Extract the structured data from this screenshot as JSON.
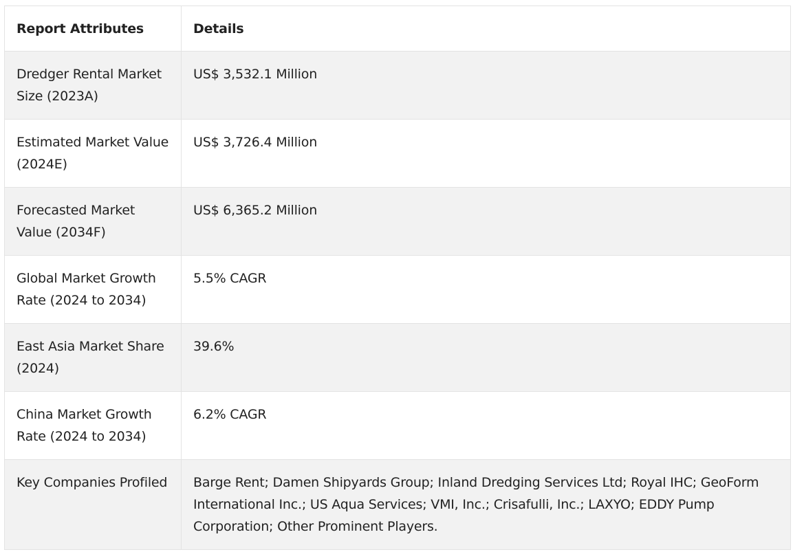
{
  "table": {
    "headers": [
      "Report Attributes",
      "Details"
    ],
    "rows": [
      {
        "attribute": "Dredger Rental Market Size (2023A)",
        "details": "US$ 3,532.1 Million"
      },
      {
        "attribute": "Estimated Market Value (2024E)",
        "details": "US$ 3,726.4 Million"
      },
      {
        "attribute": "Forecasted Market Value (2034F)",
        "details": "US$ 6,365.2 Million"
      },
      {
        "attribute": "Global Market Growth Rate (2024 to 2034)",
        "details": "5.5% CAGR"
      },
      {
        "attribute": "East Asia Market Share (2024)",
        "details": "39.6%"
      },
      {
        "attribute": "China Market Growth Rate (2024 to 2034)",
        "details": "6.2% CAGR"
      },
      {
        "attribute": "Key Companies Profiled",
        "details": "Barge Rent; Damen Shipyards Group; Inland Dredging Services Ltd; Royal IHC; GeoForm International Inc.; US Aqua Services; VMI, Inc.; Crisafulli, Inc.; LAXYO; EDDY Pump Corporation; Other Prominent Players."
      }
    ]
  }
}
